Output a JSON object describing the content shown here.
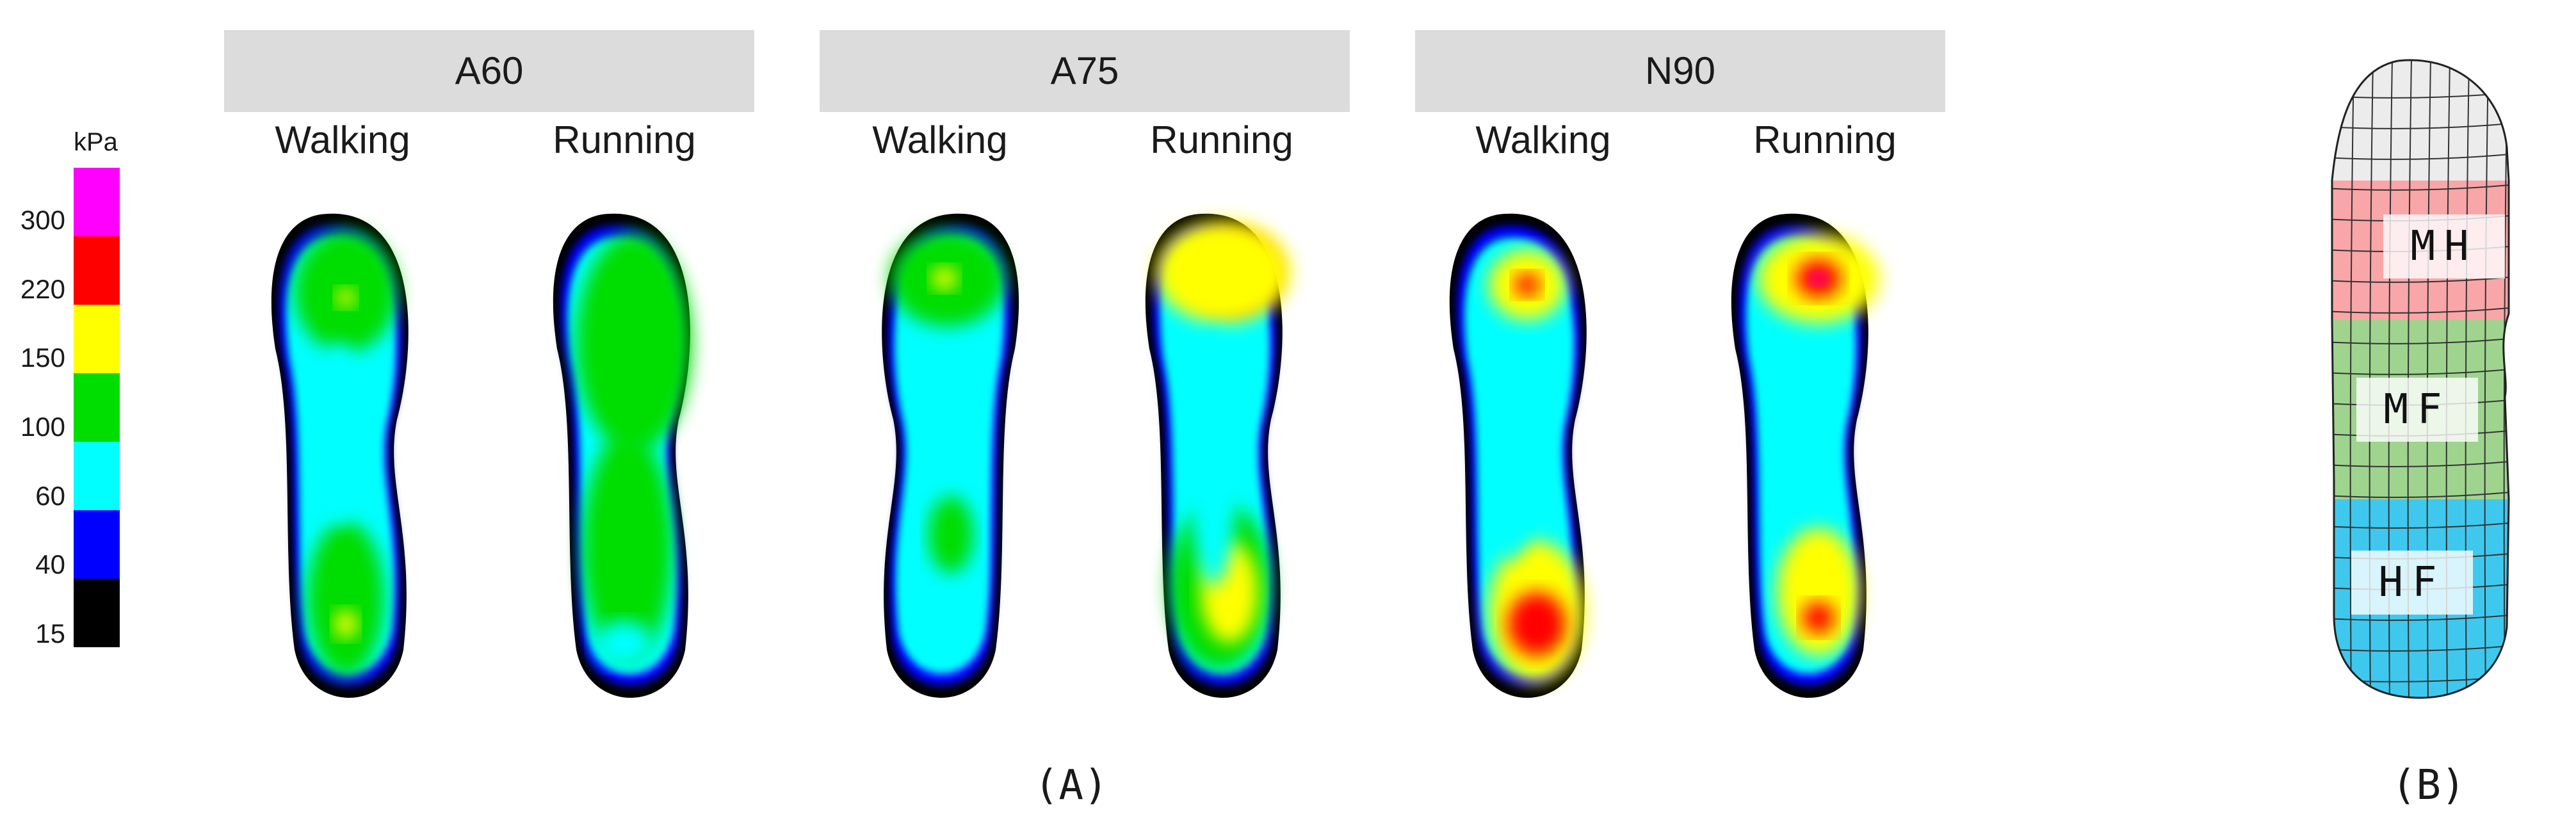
{
  "colorbar": {
    "unit": "kPa",
    "ticks": [
      "300",
      "220",
      "150",
      "100",
      "60",
      "40",
      "15"
    ],
    "bands": [
      "#ff00ff",
      "#ff0000",
      "#ffff00",
      "#00dd00",
      "#00ffff",
      "#0000ff",
      "#000000"
    ]
  },
  "groups": [
    {
      "title": "A60",
      "conditions": [
        "Walking",
        "Running"
      ]
    },
    {
      "title": "A75",
      "conditions": [
        "Walking",
        "Running"
      ]
    },
    {
      "title": "N90",
      "conditions": [
        "Walking",
        "Running"
      ]
    }
  ],
  "panel_labels": {
    "a": "(A)",
    "b": "(B)"
  },
  "regions": [
    {
      "label": "MH",
      "color": "#f9a6a8"
    },
    {
      "label": "MF",
      "color": "#9fd48f"
    },
    {
      "label": "HF",
      "color": "#3fc8ee"
    }
  ],
  "toe_region_color": "#ececec"
}
